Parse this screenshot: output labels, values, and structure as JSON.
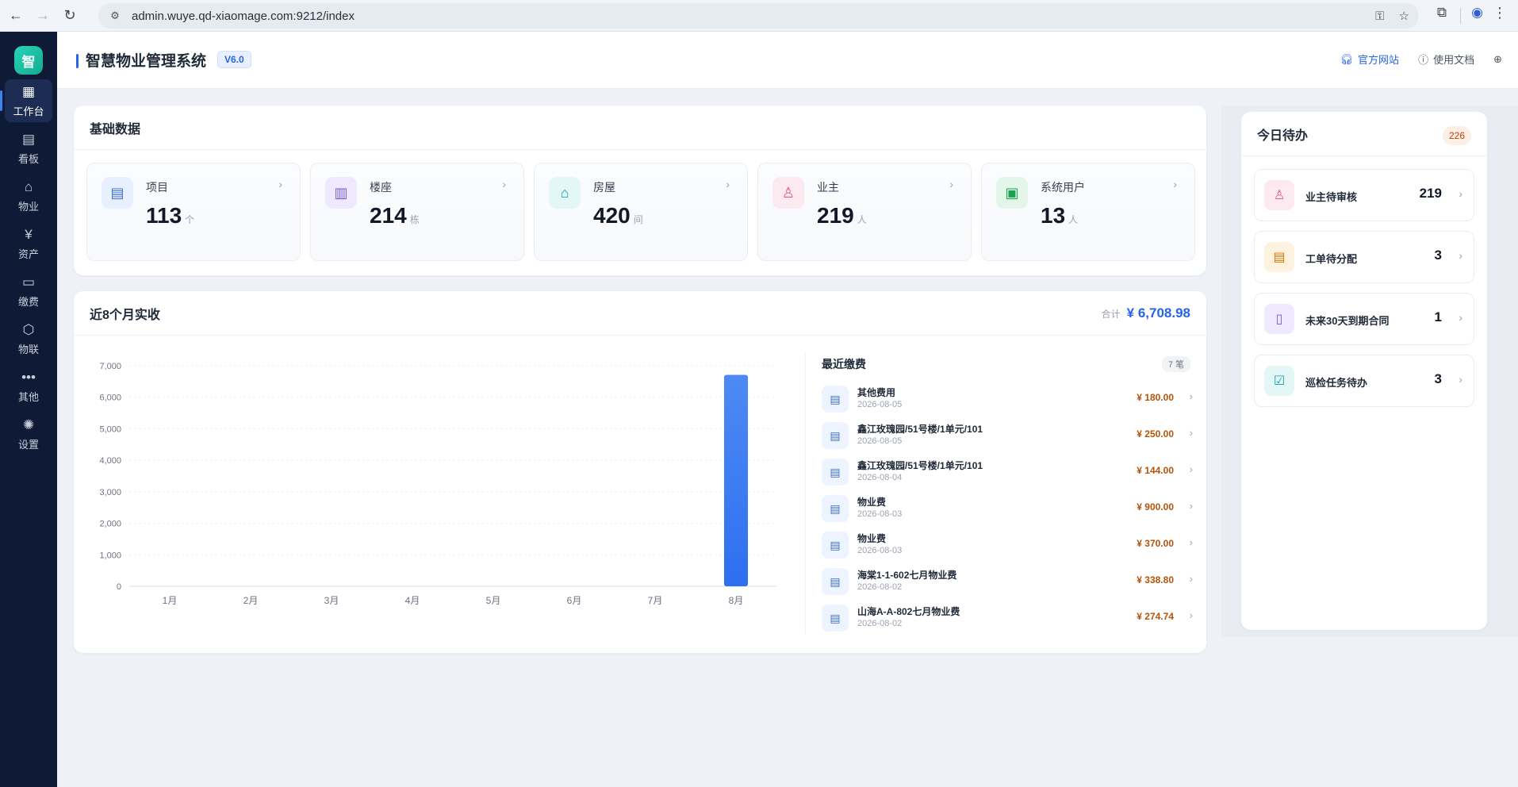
{
  "browser": {
    "url": "admin.wuye.qd-xiaomage.com:9212/index"
  },
  "sidebar": {
    "logo": "智",
    "items": [
      {
        "label": "工作台",
        "icon": "dashboard-icon",
        "glyph": "▦"
      },
      {
        "label": "看板",
        "icon": "board-icon",
        "glyph": "▤"
      },
      {
        "label": "物业",
        "icon": "home-icon",
        "glyph": "⌂"
      },
      {
        "label": "资产",
        "icon": "yuan-icon",
        "glyph": "¥"
      },
      {
        "label": "缴费",
        "icon": "bill-icon",
        "glyph": "▭"
      },
      {
        "label": "物联",
        "icon": "hexagon-icon",
        "glyph": "⬡"
      },
      {
        "label": "其他",
        "icon": "more-icon",
        "glyph": "•••"
      },
      {
        "label": "设置",
        "icon": "gear-icon",
        "glyph": "✺"
      }
    ]
  },
  "header": {
    "title": "智慧物业管理系统",
    "version": "V6.0",
    "links": {
      "official_site": "官方网站",
      "docs": "使用文档"
    }
  },
  "basic": {
    "title": "基础数据",
    "stats": [
      {
        "name": "项目",
        "value": "113",
        "unit": "个",
        "icon": "building-icon",
        "color": "#3b6fd9",
        "bg": "#e8f0ff"
      },
      {
        "name": "楼座",
        "value": "214",
        "unit": "栋",
        "icon": "tower-icon",
        "color": "#7c5cd6",
        "bg": "#efe9ff"
      },
      {
        "name": "房屋",
        "value": "420",
        "unit": "间",
        "icon": "house-icon",
        "color": "#0e9fa6",
        "bg": "#e3f7f7"
      },
      {
        "name": "业主",
        "value": "219",
        "unit": "人",
        "icon": "person-icon",
        "color": "#e05a7a",
        "bg": "#fdeaf0"
      },
      {
        "name": "系统用户",
        "value": "13",
        "unit": "人",
        "icon": "id-card-icon",
        "color": "#16a34a",
        "bg": "#e4f6ea"
      }
    ]
  },
  "revenue": {
    "title": "近8个月实收",
    "total_label": "合计",
    "total_value": "¥ 6,708.98"
  },
  "chart_data": {
    "type": "bar",
    "categories": [
      "1月",
      "2月",
      "3月",
      "4月",
      "5月",
      "6月",
      "7月",
      "8月"
    ],
    "values": [
      0,
      0,
      0,
      0,
      0,
      0,
      0,
      6708.98
    ],
    "ylim": [
      0,
      7000
    ],
    "yticks": [
      "0",
      "1,000",
      "2,000",
      "3,000",
      "4,000",
      "5,000",
      "6,000",
      "7,000"
    ],
    "grid": true,
    "color": "#3b7bf0"
  },
  "recent_payments": {
    "title": "最近缴费",
    "count": "7 笔",
    "rows": [
      {
        "name": "其他费用",
        "date": "2026-08-05",
        "amount": "¥ 180.00"
      },
      {
        "name": "鑫江玫瑰园/51号楼/1单元/101",
        "date": "2026-08-05",
        "amount": "¥ 250.00"
      },
      {
        "name": "鑫江玫瑰园/51号楼/1单元/101",
        "date": "2026-08-04",
        "amount": "¥ 144.00"
      },
      {
        "name": "物业费",
        "date": "2026-08-03",
        "amount": "¥ 900.00"
      },
      {
        "name": "物业费",
        "date": "2026-08-03",
        "amount": "¥ 370.00"
      },
      {
        "name": "海棠1-1-602七月物业费",
        "date": "2026-08-02",
        "amount": "¥ 338.80"
      },
      {
        "name": "山海A-A-802七月物业费",
        "date": "2026-08-02",
        "amount": "¥ 274.74"
      }
    ]
  },
  "todo": {
    "title": "今日待办",
    "badge": "226",
    "items": [
      {
        "name": "业主待审核",
        "value": "219",
        "icon": "user-check-icon",
        "color": "#e05a7a",
        "bg": "#fdeaf0"
      },
      {
        "name": "工单待分配",
        "value": "3",
        "icon": "clipboard-icon",
        "color": "#d97706",
        "bg": "#fdf1e0"
      },
      {
        "name": "未来30天到期合同",
        "value": "1",
        "icon": "contract-icon",
        "color": "#7c5cd6",
        "bg": "#efe9ff"
      },
      {
        "name": "巡检任务待办",
        "value": "3",
        "icon": "checklist-icon",
        "color": "#0e9fa6",
        "bg": "#e3f7f7"
      }
    ]
  }
}
